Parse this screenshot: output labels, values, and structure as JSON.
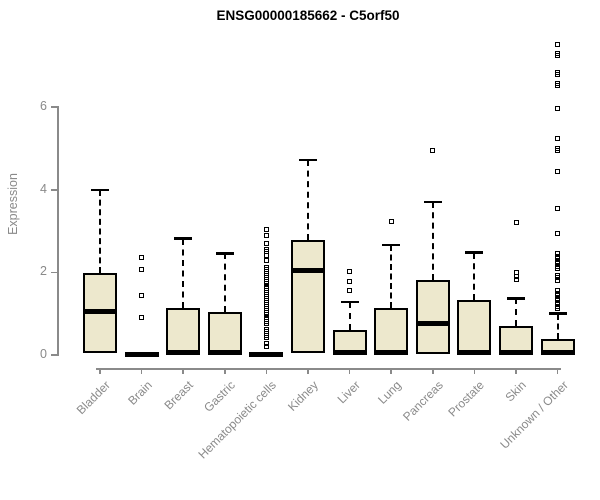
{
  "chart_data": {
    "type": "boxplot",
    "title": "ENSG00000185662 - C5orf50",
    "ylabel": "Expression",
    "xlabel": "",
    "y_axis": {
      "ticks": [
        0,
        2,
        4,
        6
      ],
      "range": [
        0,
        7.8
      ]
    },
    "grid": false,
    "legend": "none",
    "colors": {
      "box_fill": "#EDE8CD",
      "box_border": "#000000",
      "median": "#000000",
      "axis": "#8a8a8a",
      "title": "#000000"
    },
    "categories": [
      "Bladder",
      "Brain",
      "Breast",
      "Gastric",
      "Hematopoietic cells",
      "Kidney",
      "Liver",
      "Lung",
      "Pancreas",
      "Prostate",
      "Skin",
      "Unknown / Other"
    ],
    "series": [
      {
        "category": "Bladder",
        "q1": 0.04,
        "median": 1.05,
        "q3": 1.98,
        "whisker_low": 0.02,
        "whisker_high": 4.0,
        "outliers": []
      },
      {
        "category": "Brain",
        "q1": 0.0,
        "median": 0.02,
        "q3": 0.04,
        "whisker_low": 0.0,
        "whisker_high": 0.04,
        "outliers": [
          0.9,
          1.45,
          2.08,
          2.37
        ]
      },
      {
        "category": "Breast",
        "q1": 0.02,
        "median": 0.05,
        "q3": 1.13,
        "whisker_low": 0.0,
        "whisker_high": 2.82,
        "outliers": []
      },
      {
        "category": "Gastric",
        "q1": 0.02,
        "median": 0.05,
        "q3": 1.05,
        "whisker_low": 0.0,
        "whisker_high": 2.46,
        "outliers": []
      },
      {
        "category": "Hematopoietic cells",
        "q1": 0.0,
        "median": 0.02,
        "q3": 0.04,
        "whisker_low": 0.0,
        "whisker_high": 0.04,
        "outliers": [
          0.2,
          0.28,
          0.42,
          0.47,
          0.52,
          0.57,
          0.62,
          0.77,
          0.82,
          0.87,
          0.92,
          0.97,
          1.02,
          1.07,
          1.12,
          1.17,
          1.22,
          1.27,
          1.32,
          1.37,
          1.42,
          1.47,
          1.52,
          1.57,
          1.62,
          1.67,
          1.72,
          1.77,
          1.82,
          1.87,
          1.92,
          1.97,
          2.02,
          2.07,
          2.12,
          2.3,
          2.42,
          2.5,
          2.55,
          2.7,
          2.9,
          3.05
        ]
      },
      {
        "category": "Kidney",
        "q1": 0.05,
        "median": 2.04,
        "q3": 2.78,
        "whisker_low": 0.02,
        "whisker_high": 4.72,
        "outliers": []
      },
      {
        "category": "Liver",
        "q1": 0.02,
        "median": 0.05,
        "q3": 0.6,
        "whisker_low": 0.0,
        "whisker_high": 1.28,
        "outliers": [
          1.57,
          1.79,
          2.01
        ]
      },
      {
        "category": "Lung",
        "q1": 0.02,
        "median": 0.05,
        "q3": 1.15,
        "whisker_low": 0.0,
        "whisker_high": 2.66,
        "outliers": [
          3.24
        ]
      },
      {
        "category": "Pancreas",
        "q1": 0.03,
        "median": 0.76,
        "q3": 1.82,
        "whisker_low": 0.02,
        "whisker_high": 3.7,
        "outliers": [
          4.94
        ]
      },
      {
        "category": "Prostate",
        "q1": 0.02,
        "median": 0.05,
        "q3": 1.32,
        "whisker_low": 0.0,
        "whisker_high": 2.48,
        "outliers": []
      },
      {
        "category": "Skin",
        "q1": 0.02,
        "median": 0.05,
        "q3": 0.7,
        "whisker_low": 0.0,
        "whisker_high": 1.37,
        "outliers": [
          1.82,
          1.91,
          2.0,
          3.21
        ]
      },
      {
        "category": "Unknown / Other",
        "q1": 0.02,
        "median": 0.05,
        "q3": 0.38,
        "whisker_low": 0.0,
        "whisker_high": 1.0,
        "outliers": [
          1.12,
          1.18,
          1.25,
          1.31,
          1.38,
          1.44,
          1.5,
          1.57,
          1.81,
          1.87,
          1.93,
          2.09,
          2.15,
          2.21,
          2.27,
          2.33,
          2.39,
          2.45,
          2.94,
          3.55,
          4.44,
          4.95,
          5.0,
          5.25,
          5.98,
          6.53,
          6.58,
          6.78,
          6.83,
          7.25,
          7.3,
          7.52
        ]
      }
    ]
  }
}
